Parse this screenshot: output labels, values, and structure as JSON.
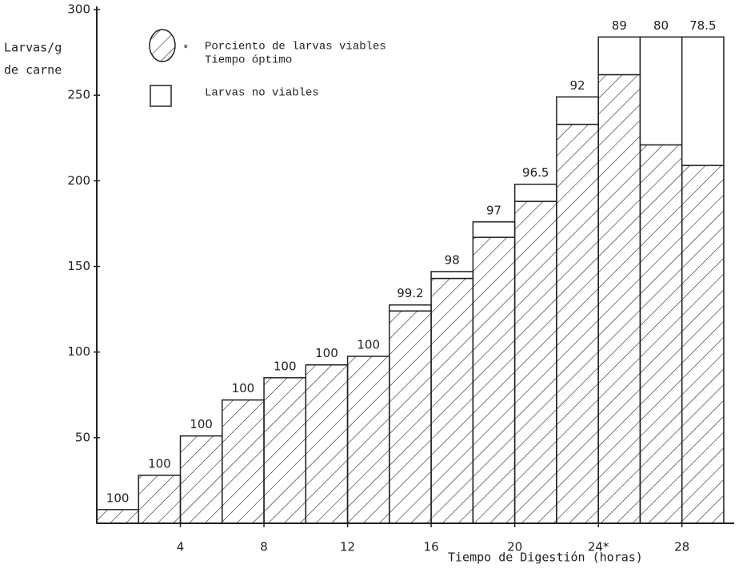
{
  "chart_data": {
    "type": "stacked_histogram",
    "y_label_lines": [
      "Larvas/g",
      "de carne"
    ],
    "x_label": "Tiempo de Digestión  (horas)",
    "bins": [
      0,
      2,
      4,
      6,
      8,
      10,
      12,
      14,
      16,
      18,
      20,
      22,
      24,
      26,
      28,
      30
    ],
    "series": [
      {
        "name": "Porciento de larvas viables",
        "color": "#222222",
        "hatch": true,
        "values": [
          8,
          28,
          51,
          72,
          85,
          92.5,
          97.5,
          124,
          143,
          167,
          188,
          233,
          262,
          221,
          209
        ]
      },
      {
        "name": "Larvas no viables",
        "color": "#222222",
        "hatch": false,
        "values": [
          0,
          0,
          0,
          0,
          0,
          0,
          0,
          3.5,
          4,
          9,
          10,
          16,
          22,
          63,
          75
        ]
      }
    ],
    "percent_viable": [
      100,
      100,
      100,
      100,
      100,
      100,
      100,
      99.2,
      98,
      97,
      96.5,
      92,
      89,
      80,
      78.5
    ],
    "legend_note": {
      "marker": "*",
      "text": "Tiempo óptimo"
    },
    "xlim": [
      0,
      30.5
    ],
    "xticks": [
      4,
      8,
      12,
      16,
      20,
      {
        "value": 24,
        "label": "24*"
      },
      28
    ],
    "ylim": [
      0,
      300
    ],
    "yticks": [
      50,
      100,
      150,
      200,
      250,
      300
    ]
  }
}
